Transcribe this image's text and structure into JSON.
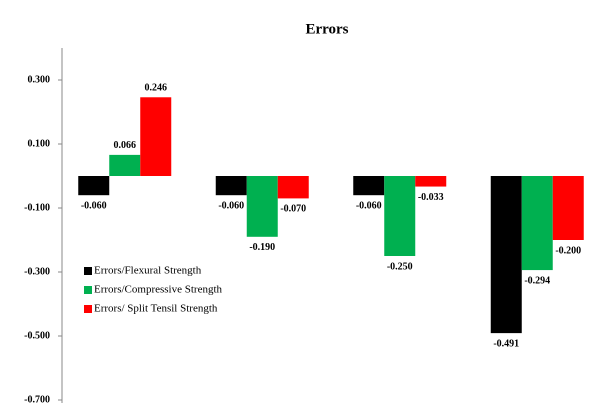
{
  "chart_data": {
    "type": "bar",
    "title": "Errors",
    "categories": [
      null,
      null,
      null,
      null
    ],
    "series": [
      {
        "name": "Errors/Flexural Strength",
        "color": "#000000",
        "values": [
          -0.06,
          -0.06,
          -0.06,
          -0.491
        ],
        "value_labels": [
          "-0.060",
          "-0.060",
          "-0.060",
          "-0.491"
        ]
      },
      {
        "name": "Errors/Compressive Strength",
        "color": "#00b050",
        "values": [
          0.066,
          -0.19,
          -0.25,
          -0.294
        ],
        "value_labels": [
          "0.066",
          "-0.190",
          "-0.250",
          "-0.294"
        ]
      },
      {
        "name": "Errors/ Split Tensil Strength",
        "color": "#ff0000",
        "values": [
          0.246,
          -0.07,
          -0.033,
          -0.2
        ],
        "value_labels": [
          "0.246",
          "-0.070",
          "-0.033",
          "-0.200"
        ]
      }
    ],
    "ylim": [
      -0.7,
      0.4
    ],
    "yticks": [
      {
        "value": 0.3,
        "label": "0.300"
      },
      {
        "value": 0.1,
        "label": "0.100"
      },
      {
        "value": -0.1,
        "label": "-0.100"
      },
      {
        "value": -0.3,
        "label": "-0.300"
      },
      {
        "value": -0.5,
        "label": "-0.500"
      },
      {
        "value": -0.7,
        "label": "-0.700"
      }
    ],
    "grid": false,
    "legend": "left"
  }
}
